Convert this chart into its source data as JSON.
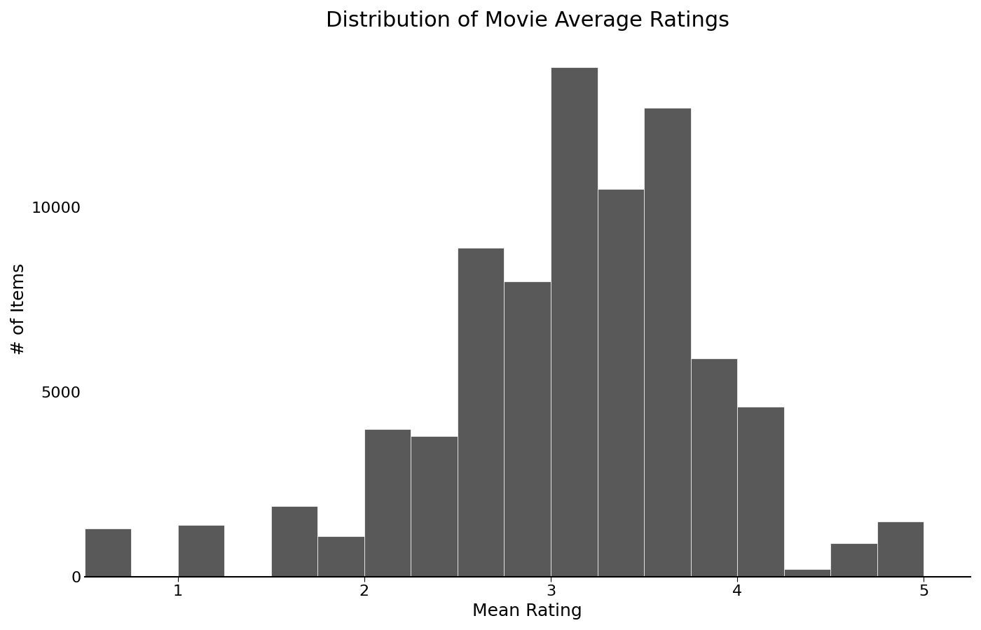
{
  "title": "Distribution of Movie Average Ratings",
  "xlabel": "Mean Rating",
  "ylabel": "# of Items",
  "bar_color": "#595959",
  "bar_edgecolor": "white",
  "background_color": "#ffffff",
  "bin_edges": [
    0.5,
    0.75,
    1.0,
    1.25,
    1.5,
    1.75,
    2.0,
    2.25,
    2.5,
    2.75,
    3.0,
    3.25,
    3.5,
    3.75,
    4.0,
    4.25,
    4.5,
    4.75,
    5.0
  ],
  "bin_heights": [
    1300,
    0,
    1400,
    0,
    1900,
    1100,
    4000,
    3800,
    8900,
    8000,
    13800,
    10500,
    12700,
    5900,
    4600,
    200,
    900,
    1500
  ],
  "xlim": [
    0.5,
    5.25
  ],
  "ylim": [
    0,
    14500
  ],
  "xticks": [
    1,
    2,
    3,
    4,
    5
  ],
  "yticks": [
    0,
    5000,
    10000
  ],
  "title_fontsize": 22,
  "label_fontsize": 18,
  "tick_fontsize": 16
}
